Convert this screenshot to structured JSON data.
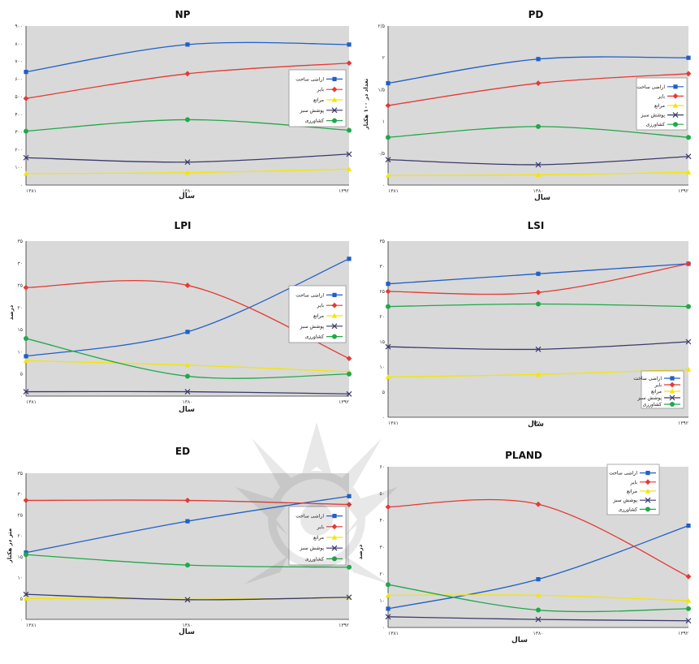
{
  "colors": {
    "built": "#1f5fc8",
    "barren": "#e53935",
    "pasture": "#f2e600",
    "green": "#3a3a6e",
    "agri": "#21a84a",
    "plot_bg": "#d9d9d9"
  },
  "chart_data": [
    {
      "type": "line",
      "title": "NP",
      "xlabel": "سال",
      "ylabel": "",
      "categories": [
        "۱۳۸۱",
        "۱۳۸۰",
        "۱۳۹۲"
      ],
      "ylim": [
        0,
        900
      ],
      "yticks": [
        "۰",
        "۱۰۰",
        "۲۰۰",
        "۳۰۰",
        "۴۰۰",
        "۵۰۰",
        "۶۰۰",
        "۷۰۰",
        "۸۰۰",
        "۹۰۰"
      ],
      "series": [
        {
          "name": "اراضی ساخت",
          "values": [
            640,
            795,
            795
          ]
        },
        {
          "name": "بایر",
          "values": [
            490,
            630,
            690
          ]
        },
        {
          "name": "مراتع",
          "values": [
            65,
            70,
            90
          ]
        },
        {
          "name": "پوشش سبز",
          "values": [
            155,
            130,
            175
          ]
        },
        {
          "name": "کشاورزی",
          "values": [
            305,
            370,
            310
          ]
        }
      ]
    },
    {
      "type": "line",
      "title": "PD",
      "xlabel": "سال",
      "ylabel": "تعداد در ۱۰۰ هکتار",
      "categories": [
        "۱۳۸۱",
        "۱۳۸۰",
        "۱۳۹۲"
      ],
      "ylim": [
        0,
        2.5
      ],
      "yticks": [
        "۰",
        "۰/۵",
        "۱",
        "۱/۵",
        "۲",
        "۲/۵"
      ],
      "series": [
        {
          "name": "اراضی ساخت",
          "values": [
            1.6,
            1.98,
            2.0
          ]
        },
        {
          "name": "بایر",
          "values": [
            1.25,
            1.6,
            1.75
          ]
        },
        {
          "name": "مراتع",
          "values": [
            0.15,
            0.16,
            0.2
          ]
        },
        {
          "name": "پوشش سبز",
          "values": [
            0.4,
            0.32,
            0.45
          ]
        },
        {
          "name": "کشاورزی",
          "values": [
            0.75,
            0.92,
            0.75
          ]
        }
      ]
    },
    {
      "type": "line",
      "title": "LPI",
      "xlabel": "سال",
      "ylabel": "درصد",
      "categories": [
        "۱۳۸۱",
        "۱۳۸۰",
        "۱۳۹۲"
      ],
      "ylim": [
        0,
        35
      ],
      "yticks": [
        "۰",
        "۵",
        "۱۰",
        "۱۵",
        "۲۰",
        "۲۵",
        "۳۰",
        "۳۵"
      ],
      "series": [
        {
          "name": "اراضی ساخت",
          "values": [
            9,
            14.5,
            31
          ]
        },
        {
          "name": "بایر",
          "values": [
            24.5,
            25,
            8.5
          ]
        },
        {
          "name": "مراتع",
          "values": [
            8,
            7,
            5.5
          ]
        },
        {
          "name": "پوشش سبز",
          "values": [
            1,
            1,
            0.5
          ]
        },
        {
          "name": "کشاورزی",
          "values": [
            13,
            4.5,
            5
          ]
        }
      ]
    },
    {
      "type": "line",
      "title": "LSI",
      "xlabel": "سال",
      "ylabel": "",
      "categories": [
        "۱۳۸۱",
        "۱۳۸۰",
        "۱۳۹۲"
      ],
      "ylim": [
        0,
        35
      ],
      "yticks": [
        "۰",
        "۵",
        "۱۰",
        "۱۵",
        "۲۰",
        "۲۵",
        "۳۰",
        "۳۵"
      ],
      "series": [
        {
          "name": "اراضی ساخت",
          "values": [
            26.5,
            28.5,
            30.5
          ]
        },
        {
          "name": "بایر",
          "values": [
            25,
            24.8,
            30.5
          ]
        },
        {
          "name": "مراتع",
          "values": [
            8,
            8.5,
            9.5
          ]
        },
        {
          "name": "پوشش سبز",
          "values": [
            14,
            13.5,
            15
          ]
        },
        {
          "name": "کشاورزی",
          "values": [
            22,
            22.5,
            22
          ]
        }
      ]
    },
    {
      "type": "line",
      "title": "ED",
      "xlabel": "سال",
      "ylabel": "متر در هکتار",
      "categories": [
        "۱۳۸۱",
        "۱۳۸۰",
        "۱۳۹۲"
      ],
      "ylim": [
        0,
        35
      ],
      "yticks": [
        "۰",
        "۵",
        "۱۰",
        "۱۵",
        "۲۰",
        "۲۵",
        "۳۰",
        "۳۵"
      ],
      "series": [
        {
          "name": "اراضی ساخت",
          "values": [
            16,
            23.5,
            29.5
          ]
        },
        {
          "name": "بایر",
          "values": [
            28.5,
            28.5,
            27.5
          ]
        },
        {
          "name": "مراتع",
          "values": [
            5,
            4.8,
            5.2
          ]
        },
        {
          "name": "پوشش سبز",
          "values": [
            6,
            4.7,
            5.3
          ]
        },
        {
          "name": "کشاورزی",
          "values": [
            15.5,
            13,
            12.5
          ]
        }
      ]
    },
    {
      "type": "line",
      "title": "PLAND",
      "xlabel": "سال",
      "ylabel": "درصد",
      "categories": [
        "۱۳۸۱",
        "۱۳۸۰",
        "۱۳۹۲"
      ],
      "ylim": [
        0,
        60
      ],
      "yticks": [
        "۰",
        "۱۰",
        "۲۰",
        "۳۰",
        "۴۰",
        "۵۰",
        "۶۰"
      ],
      "series": [
        {
          "name": "اراضی ساخت",
          "values": [
            7,
            18,
            38
          ]
        },
        {
          "name": "بایر",
          "values": [
            45,
            46,
            19
          ]
        },
        {
          "name": "مراتع",
          "values": [
            12,
            12,
            10
          ]
        },
        {
          "name": "پوشش سبز",
          "values": [
            4,
            3,
            2.5
          ]
        },
        {
          "name": "کشاورزی",
          "values": [
            16,
            6.5,
            7
          ]
        }
      ]
    }
  ]
}
